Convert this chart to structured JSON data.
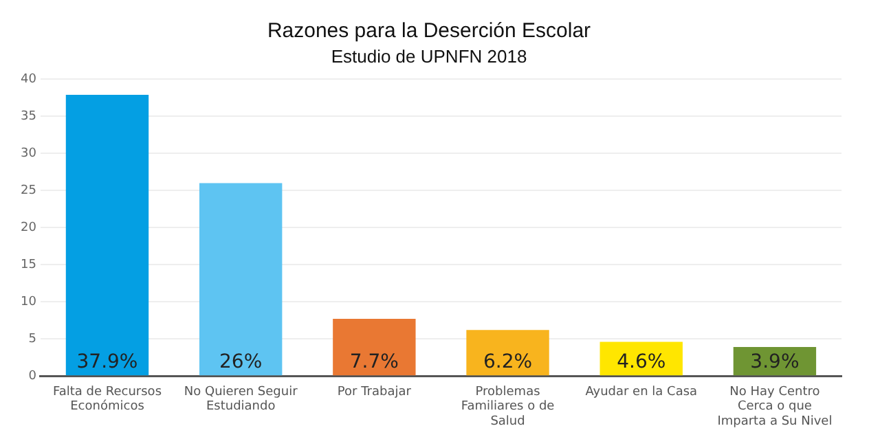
{
  "chart_data": {
    "type": "bar",
    "title": "Razones para la Deserción Escolar",
    "subtitle": "Estudio de UPNFN 2018",
    "categories": [
      "Falta de Recursos Económicos",
      "No Quieren Seguir Estudiando",
      "Por Trabajar",
      "Problemas Familiares o de Salud",
      "Ayudar en la Casa",
      "No Hay Centro Cerca o que Imparta a Su Nivel"
    ],
    "values": [
      37.9,
      26,
      7.7,
      6.2,
      4.6,
      3.9
    ],
    "value_labels": [
      "37.9%",
      "26%",
      "7.7%",
      "6.2%",
      "4.6%",
      "3.9%"
    ],
    "colors": [
      "#049fe3",
      "#5ec4f2",
      "#e97833",
      "#f8b41e",
      "#ffe600",
      "#6f9533"
    ],
    "ylim": [
      0,
      40
    ],
    "yticks": [
      0,
      5,
      10,
      15,
      20,
      25,
      30,
      35,
      40
    ],
    "grid": "y",
    "legend": false
  }
}
